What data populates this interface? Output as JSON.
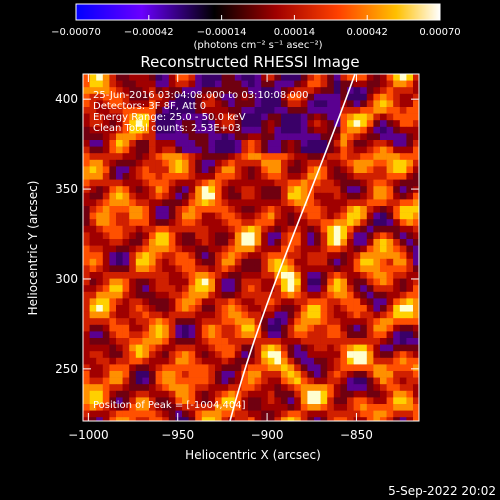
{
  "chart_data": {
    "type": "heatmap",
    "title": "Reconstructed RHESSI Image",
    "xlabel": "Heliocentric X (arcsec)",
    "ylabel": "Heliocentric Y (arcsec)",
    "xlim": [
      -1003,
      -815
    ],
    "ylim": [
      221,
      414
    ],
    "x_ticks": [
      -1000,
      -950,
      -900,
      -850
    ],
    "x_tick_labels": [
      "−1000",
      "−950",
      "−900",
      "−850"
    ],
    "y_ticks": [
      250,
      300,
      350,
      400
    ],
    "y_tick_labels": [
      "250",
      "300",
      "350",
      "400"
    ],
    "colorbar": {
      "ticks": [
        -0.0007,
        -0.00042,
        -0.00014,
        0.00014,
        0.00042,
        0.0007
      ],
      "tick_labels": [
        "−0.00070",
        "−0.00042",
        "−0.00014",
        "0.00014",
        "0.00042",
        "0.00070"
      ],
      "units_label": "(photons cm⁻² s⁻¹ asec⁻²)",
      "colormap": [
        "#0000ff",
        "#6a00ff",
        "#000000",
        "#a00000",
        "#ff4000",
        "#ffc000",
        "#ffffff"
      ]
    },
    "annotations": [
      "25-Jun-2016 03:04:08.000 to 03:10:08.000",
      "Detectors: 3F 8F, Att 0",
      "Energy Range: 25.0 - 50.0 keV",
      "Clean    Total counts: 2.53E+03"
    ],
    "peak_label": "Position of Peak = [-1004,404]",
    "peak_position": [
      -1004,
      404
    ],
    "limb": "solar limb curve from (-917, 221) to (-847, 414)",
    "grid": false
  },
  "footer": {
    "date": "5-Sep-2022 20:02"
  }
}
